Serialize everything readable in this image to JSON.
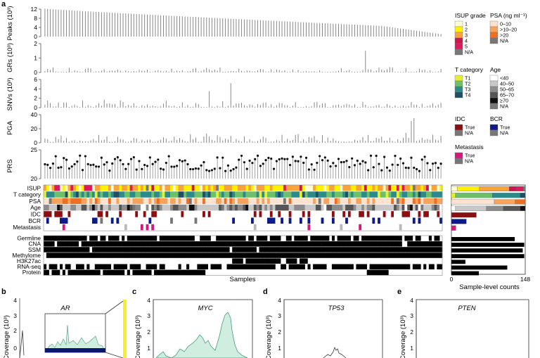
{
  "panel_labels": {
    "a": "a",
    "b": "b",
    "c": "c",
    "d": "d",
    "e": "e"
  },
  "colors": {
    "bar": "#7a7a7a",
    "isup": [
      "#fffbd0",
      "#fff200",
      "#f7a23a",
      "#c8184d",
      "#e0195f",
      "#777777"
    ],
    "psa": [
      "#fde3cf",
      "#f7a35c",
      "#ef6f22",
      "#777777"
    ],
    "tcat": [
      "#e6ef2e",
      "#6cc06a",
      "#2c8a8a",
      "#1f4f60"
    ],
    "age": [
      "#ffffff",
      "#c8c8c8",
      "#8c8c8c",
      "#555555",
      "#111111",
      "#777777"
    ],
    "idc": [
      "#8b0f12",
      "#777777"
    ],
    "bcr": [
      "#0d1a8a",
      "#777777"
    ],
    "met": [
      "#d4187f",
      "#777777"
    ],
    "black": "#000000",
    "coverage_fill": "#cfeee0",
    "coverage_line": "#4a9a7a",
    "ar_base": "#0a1670",
    "highlight": "#f5ee2a"
  },
  "chart_data": [
    {
      "type": "bar",
      "name": "peaks",
      "ylabel": "Peaks (10³)",
      "ylim": [
        0,
        12
      ],
      "yticks": [
        "0",
        "4",
        "8",
        "12"
      ],
      "note": "values sorted descending across samples",
      "series_start": 12.2,
      "series_end": 0.8
    },
    {
      "type": "bar",
      "name": "grs",
      "ylabel": "GRs (10³)",
      "ylim": [
        0,
        2
      ],
      "yticks": [
        "0",
        "1",
        "2"
      ],
      "outliers": [
        {
          "sample": 119,
          "value": 1.5
        }
      ]
    },
    {
      "type": "bar",
      "name": "snvs",
      "ylabel": "SNVs (10³)",
      "ylim": [
        0,
        6
      ],
      "yticks": [
        "0",
        "2",
        "4",
        "6"
      ],
      "outliers": [
        {
          "sample": 69,
          "value": 5.2
        },
        {
          "sample": 61,
          "value": 3.5
        }
      ]
    },
    {
      "type": "bar",
      "name": "pga",
      "ylabel": "PGA",
      "ylim": [
        0,
        40
      ],
      "yticks": [
        "0",
        "20",
        "40"
      ],
      "outliers": [
        {
          "sample": 136,
          "value": 31
        },
        {
          "sample": 137,
          "value": 35
        }
      ]
    },
    {
      "type": "scatter",
      "name": "prs",
      "ylabel": "PRS",
      "ylim": [
        20,
        25
      ],
      "yticks": [
        "20",
        "25"
      ],
      "range": [
        21.2,
        24.2
      ]
    },
    {
      "type": "heatmap",
      "name": "clinical",
      "rows": [
        "ISUP",
        "T category",
        "PSA",
        "Age",
        "IDC",
        "BCR",
        "Metastasis"
      ]
    },
    {
      "type": "heatmap",
      "name": "assays",
      "rows": [
        "Germline",
        "CNA",
        "SSM",
        "Methylome",
        "H3K27ac",
        "RNA-seq",
        "Protein"
      ],
      "xlabel": "Samples"
    },
    {
      "type": "bar",
      "name": "sample_level_counts",
      "xlabel": "Sample-level counts",
      "xlim": [
        0,
        148
      ],
      "xticks": [
        "0",
        "148"
      ],
      "stacked_clinical": [
        {
          "row": "ISUP",
          "values": [
            12,
            44,
            60,
            14,
            14,
            4
          ]
        },
        {
          "row": "T category",
          "values": [
            8,
            74,
            56,
            10
          ]
        },
        {
          "row": "PSA",
          "values": [
            86,
            42,
            20,
            0
          ]
        },
        {
          "row": "Age",
          "values": [
            8,
            62,
            34,
            34,
            10,
            0
          ]
        },
        {
          "row": "IDC",
          "values": [
            50
          ]
        },
        {
          "row": "BCR",
          "values": [
            30
          ]
        },
        {
          "row": "Metastasis",
          "values": [
            9
          ]
        }
      ],
      "assay_counts": [
        127,
        146,
        143,
        146,
        28,
        112,
        55
      ]
    }
  ],
  "legends": {
    "isup": {
      "title": "ISUP grade",
      "items": [
        "1",
        "2",
        "3",
        "4",
        "5",
        "N/A"
      ]
    },
    "psa": {
      "title": "PSA (ng ml⁻¹)",
      "items": [
        "0–10",
        ">10–20",
        ">20",
        "N/A"
      ]
    },
    "tcat": {
      "title": "T category",
      "items": [
        "T1",
        "T2",
        "T3",
        "T4"
      ]
    },
    "age": {
      "title": "Age",
      "items": [
        "<40",
        "40–50",
        "50–65",
        "65–70",
        "≥70",
        "N/A"
      ]
    },
    "idc": {
      "title": "IDC",
      "items": [
        "True",
        "N/A"
      ]
    },
    "bcr": {
      "title": "BCR",
      "items": [
        "True",
        "N/A"
      ]
    },
    "met": {
      "title": "Metastasis",
      "items": [
        "True",
        "N/A"
      ]
    }
  },
  "bottom": {
    "b": {
      "ylabel": "Coverage (10³)",
      "yticks": [
        "0",
        "1",
        "2",
        "3",
        "4"
      ],
      "gene": "AR"
    },
    "c": {
      "ylabel": "Coverage (10³)",
      "yticks": [
        "1",
        "2",
        "3",
        "4"
      ],
      "gene": "MYC"
    },
    "d": {
      "ylabel": "Coverage (10³)",
      "yticks": [
        "1",
        "2",
        "3",
        "4"
      ],
      "gene": "TP53"
    },
    "e": {
      "ylabel": "Coverage (10³)",
      "yticks": [
        "1",
        "2",
        "3",
        "4"
      ],
      "gene": "PTEN"
    }
  }
}
